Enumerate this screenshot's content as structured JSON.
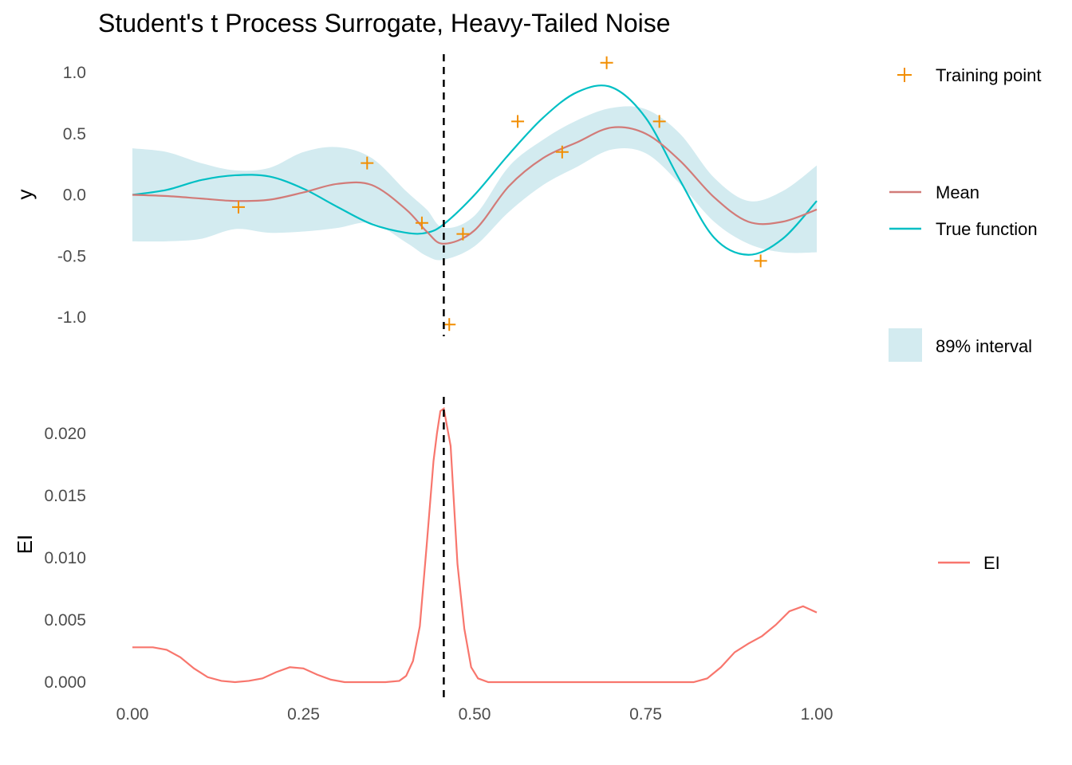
{
  "colors": {
    "mean": "#d27b78",
    "true_function": "#00bfc4",
    "band": "#d3ebf0",
    "training": "#f28e00",
    "ei": "#f8766d",
    "vline": "#000000"
  },
  "chart_data": [
    {
      "type": "line",
      "title": "Student's t Process Surrogate, Heavy-Tailed Noise",
      "ylabel": "y",
      "xlim": [
        0,
        1
      ],
      "ylim": [
        -1.15,
        1.15
      ],
      "y_ticks": [
        "1.0",
        "0.5",
        "0.0",
        "-0.5",
        "-1.0"
      ],
      "y_tick_values": [
        1.0,
        0.5,
        0.0,
        -0.5,
        -1.0
      ],
      "grid": false,
      "vline_x": 0.455,
      "legend": {
        "training": "Training point",
        "mean": "Mean",
        "true_function": "True function",
        "interval": "89% interval"
      },
      "training_points": [
        {
          "x": 0.155,
          "y": -0.1
        },
        {
          "x": 0.343,
          "y": 0.26
        },
        {
          "x": 0.423,
          "y": -0.23
        },
        {
          "x": 0.463,
          "y": -1.06
        },
        {
          "x": 0.483,
          "y": -0.32
        },
        {
          "x": 0.563,
          "y": 0.6
        },
        {
          "x": 0.628,
          "y": 0.35
        },
        {
          "x": 0.693,
          "y": 1.08
        },
        {
          "x": 0.77,
          "y": 0.6
        },
        {
          "x": 0.918,
          "y": -0.54
        }
      ],
      "x": [
        0.0,
        0.05,
        0.1,
        0.15,
        0.2,
        0.25,
        0.3,
        0.35,
        0.4,
        0.43,
        0.455,
        0.5,
        0.55,
        0.6,
        0.65,
        0.7,
        0.75,
        0.8,
        0.85,
        0.9,
        0.95,
        1.0
      ],
      "mean": [
        0.0,
        -0.01,
        -0.03,
        -0.05,
        -0.04,
        0.02,
        0.09,
        0.08,
        -0.12,
        -0.3,
        -0.4,
        -0.29,
        0.07,
        0.3,
        0.43,
        0.55,
        0.5,
        0.28,
        -0.02,
        -0.22,
        -0.22,
        -0.12
      ],
      "lower": [
        -0.38,
        -0.38,
        -0.36,
        -0.28,
        -0.31,
        -0.3,
        -0.27,
        -0.23,
        -0.39,
        -0.5,
        -0.53,
        -0.42,
        -0.14,
        0.08,
        0.23,
        0.37,
        0.34,
        0.09,
        -0.22,
        -0.4,
        -0.47,
        -0.47
      ],
      "upper": [
        0.38,
        0.35,
        0.26,
        0.2,
        0.22,
        0.35,
        0.39,
        0.3,
        0.03,
        -0.12,
        -0.27,
        -0.17,
        0.23,
        0.45,
        0.61,
        0.71,
        0.7,
        0.5,
        0.14,
        -0.05,
        0.03,
        0.24
      ],
      "true_function": [
        0.0,
        0.04,
        0.12,
        0.16,
        0.15,
        0.05,
        -0.1,
        -0.24,
        -0.31,
        -0.31,
        -0.24,
        0.0,
        0.33,
        0.63,
        0.84,
        0.88,
        0.63,
        0.12,
        -0.35,
        -0.49,
        -0.36,
        -0.05
      ]
    },
    {
      "type": "line",
      "ylabel": "EI",
      "xlim": [
        0,
        1
      ],
      "ylim": [
        -0.001,
        0.023
      ],
      "x_ticks": [
        "0.00",
        "0.25",
        "0.50",
        "0.75",
        "1.00"
      ],
      "x_tick_values": [
        0,
        0.25,
        0.5,
        0.75,
        1.0
      ],
      "y_ticks": [
        "0.020",
        "0.015",
        "0.010",
        "0.005",
        "0.000"
      ],
      "y_tick_values": [
        0.02,
        0.015,
        0.01,
        0.005,
        0.0
      ],
      "grid": false,
      "vline_x": 0.455,
      "legend": {
        "ei": "EI"
      },
      "x": [
        0.0,
        0.03,
        0.05,
        0.07,
        0.09,
        0.11,
        0.13,
        0.15,
        0.17,
        0.19,
        0.21,
        0.23,
        0.25,
        0.27,
        0.29,
        0.31,
        0.33,
        0.35,
        0.37,
        0.39,
        0.4,
        0.41,
        0.42,
        0.43,
        0.44,
        0.445,
        0.45,
        0.455,
        0.465,
        0.475,
        0.485,
        0.495,
        0.505,
        0.52,
        0.55,
        0.6,
        0.65,
        0.7,
        0.75,
        0.8,
        0.82,
        0.84,
        0.86,
        0.88,
        0.9,
        0.92,
        0.94,
        0.96,
        0.98,
        1.0
      ],
      "ei": [
        0.0028,
        0.0028,
        0.0026,
        0.002,
        0.0011,
        0.0004,
        0.0001,
        0.0,
        0.0001,
        0.0003,
        0.0008,
        0.0012,
        0.0011,
        0.0006,
        0.0002,
        0.0,
        0.0,
        0.0,
        0.0,
        0.0001,
        0.0005,
        0.0017,
        0.0045,
        0.011,
        0.0178,
        0.02,
        0.0218,
        0.022,
        0.019,
        0.0095,
        0.0043,
        0.0012,
        0.0003,
        0.0,
        0.0,
        0.0,
        0.0,
        0.0,
        0.0,
        0.0,
        0.0,
        0.0003,
        0.0012,
        0.0024,
        0.0031,
        0.0037,
        0.0046,
        0.0057,
        0.0061,
        0.0056
      ]
    }
  ]
}
